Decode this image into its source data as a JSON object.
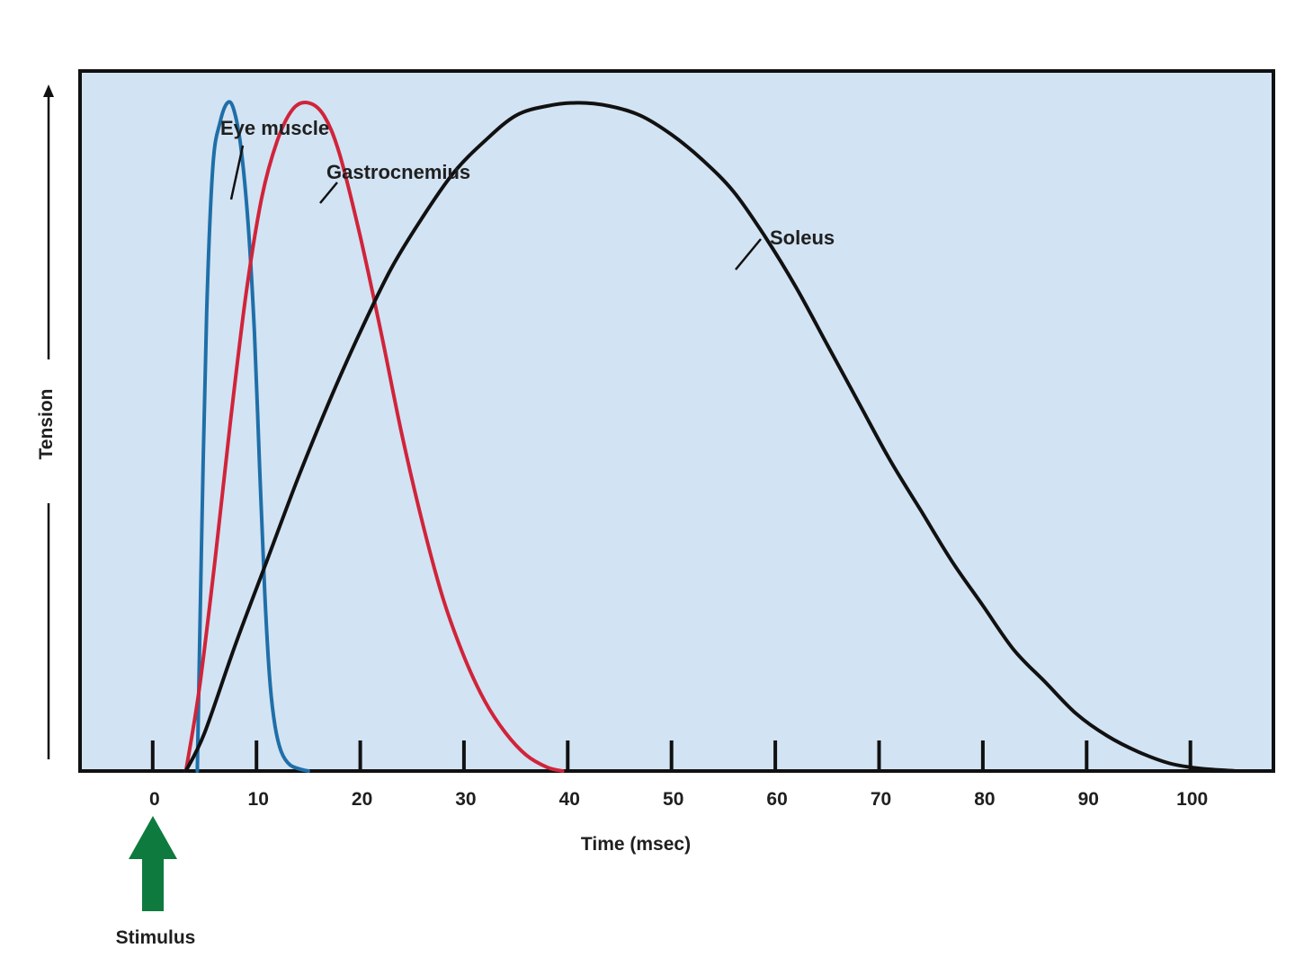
{
  "chart_data": {
    "type": "line",
    "title": "",
    "xlabel": "Time (msec)",
    "ylabel": "Tension",
    "xlim": [
      -7,
      108
    ],
    "ylim": [
      0,
      1.1
    ],
    "x_ticks": [
      0,
      10,
      20,
      30,
      40,
      50,
      60,
      70,
      80,
      90,
      100
    ],
    "grid": false,
    "legend": "none",
    "background_color": "#d2e3f3",
    "y_axis_arrow": true,
    "series": [
      {
        "name": "Eye muscle",
        "color": "#1f6fa8",
        "x": [
          4.3,
          4.7,
          5.2,
          5.8,
          6.5,
          7.2,
          7.8,
          8.5,
          9.2,
          9.8,
          10.3,
          10.8,
          11.3,
          11.8,
          12.4,
          13.2,
          14.2,
          15.0
        ],
        "y": [
          0.0,
          0.35,
          0.72,
          0.95,
          1.02,
          1.05,
          1.04,
          0.98,
          0.86,
          0.69,
          0.48,
          0.28,
          0.14,
          0.07,
          0.03,
          0.01,
          0.003,
          0.0
        ]
      },
      {
        "name": "Gastrocnemius",
        "color": "#d0243a",
        "x": [
          3.2,
          4.5,
          6.0,
          7.5,
          9.0,
          10.5,
          12.0,
          13.5,
          15.0,
          16.5,
          18.0,
          20.0,
          22.0,
          24.0,
          26.0,
          28.0,
          30.0,
          32.0,
          34.0,
          36.0,
          38.0,
          39.5
        ],
        "y": [
          0.0,
          0.13,
          0.33,
          0.55,
          0.75,
          0.9,
          0.99,
          1.04,
          1.05,
          1.03,
          0.97,
          0.84,
          0.69,
          0.53,
          0.39,
          0.27,
          0.18,
          0.11,
          0.06,
          0.025,
          0.006,
          0.0
        ]
      },
      {
        "name": "Soleus",
        "color": "#111111",
        "x": [
          3.2,
          5,
          8,
          11,
          14,
          17,
          20,
          23,
          26,
          29,
          32,
          35,
          38,
          41,
          44,
          47,
          50,
          53,
          56,
          59,
          62,
          65,
          68,
          71,
          74,
          77,
          80,
          83,
          86,
          89,
          92,
          95,
          98,
          101,
          104.5
        ],
        "y": [
          0.0,
          0.06,
          0.2,
          0.33,
          0.46,
          0.58,
          0.69,
          0.79,
          0.87,
          0.94,
          0.99,
          1.03,
          1.045,
          1.05,
          1.045,
          1.03,
          1.0,
          0.96,
          0.91,
          0.84,
          0.76,
          0.67,
          0.58,
          0.49,
          0.41,
          0.33,
          0.26,
          0.19,
          0.14,
          0.09,
          0.055,
          0.03,
          0.012,
          0.004,
          0.0
        ]
      }
    ],
    "annotations": [
      {
        "text": "Eye muscle",
        "series": "Eye muscle"
      },
      {
        "text": "Gastrocnemius",
        "series": "Gastrocnemius"
      },
      {
        "text": "Soleus",
        "series": "Soleus"
      },
      {
        "text": "Stimulus",
        "at_x": 0,
        "arrow_color": "#0e7a3e"
      }
    ]
  }
}
